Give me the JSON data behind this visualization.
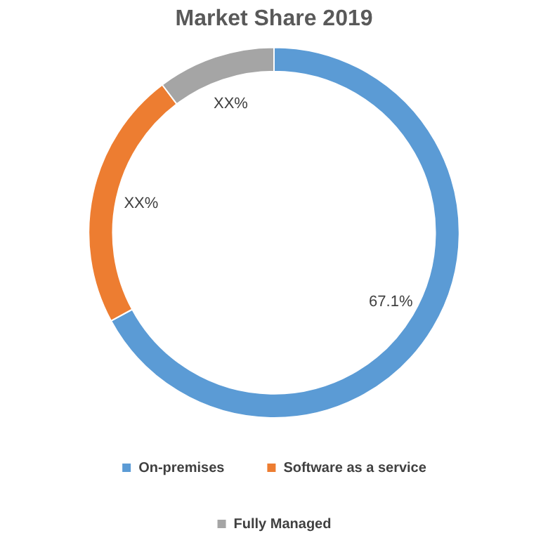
{
  "chart_data": {
    "type": "donut",
    "title": "Market Share 2019",
    "categories": [
      "On-premises",
      "Software as a service",
      "Fully Managed"
    ],
    "values": [
      67.1,
      22.6,
      10.3
    ],
    "colors": [
      "#5b9bd5",
      "#ed7d31",
      "#a5a5a5"
    ],
    "value_labels": [
      "67.1%",
      "XX%",
      "XX%"
    ],
    "legend": "bottom"
  }
}
